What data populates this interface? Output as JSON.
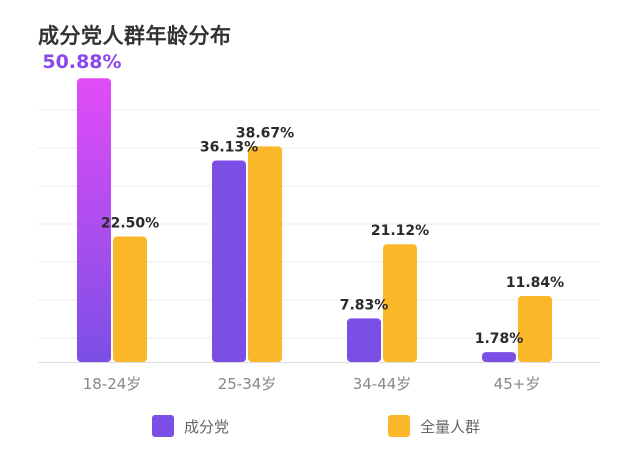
{
  "chart_data": {
    "type": "bar",
    "title": "成分党人群年龄分布",
    "categories": [
      "18-24岁",
      "25-34岁",
      "34-44岁",
      "45+岁"
    ],
    "series": [
      {
        "name": "成分党",
        "values": [
          50.88,
          36.13,
          7.83,
          1.78
        ],
        "labels": [
          "50.88%",
          "36.13%",
          "7.83%",
          "1.78%"
        ],
        "color": "#7b4fe6"
      },
      {
        "name": "全量人群",
        "values": [
          22.5,
          38.67,
          21.12,
          11.84
        ],
        "labels": [
          "22.50%",
          "38.67%",
          "21.12%",
          "11.84%"
        ],
        "color": "#fbb72a"
      }
    ],
    "highlight": {
      "series": 0,
      "category": 0,
      "label_color": "#8a48e8",
      "bar_gradient": [
        "#e24cf7",
        "#7b4fe6"
      ]
    },
    "ylim": [
      0,
      52
    ],
    "grid": true,
    "legend_position": "bottom"
  }
}
